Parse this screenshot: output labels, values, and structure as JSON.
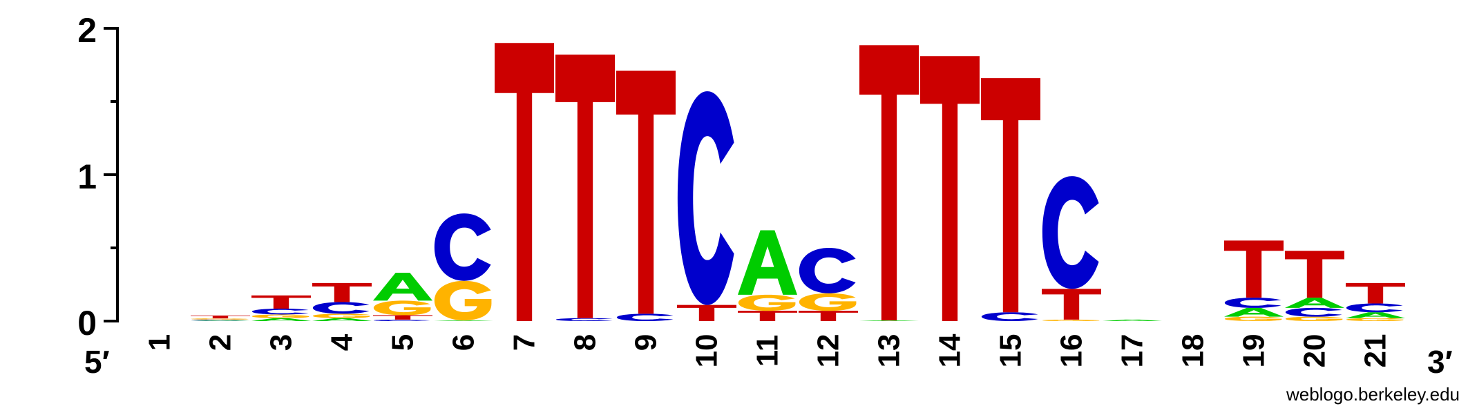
{
  "chart_data": {
    "type": "sequence-logo",
    "ylim": [
      0,
      2
    ],
    "yticks": [
      "0",
      "1",
      "2"
    ],
    "x_start_label": "5′",
    "x_end_label": "3′",
    "colors": {
      "A": "#00cc00",
      "C": "#0000cc",
      "G": "#ffb300",
      "T": "#cc0000"
    },
    "positions": [
      {
        "pos": "1",
        "stack": []
      },
      {
        "pos": "2",
        "stack": [
          [
            "A",
            0.004
          ],
          [
            "C",
            0.006
          ],
          [
            "G",
            0.008
          ],
          [
            "T",
            0.02
          ]
        ]
      },
      {
        "pos": "3",
        "stack": [
          [
            "A",
            0.02
          ],
          [
            "G",
            0.025
          ],
          [
            "C",
            0.04
          ],
          [
            "T",
            0.09
          ]
        ]
      },
      {
        "pos": "4",
        "stack": [
          [
            "A",
            0.02
          ],
          [
            "G",
            0.03
          ],
          [
            "C",
            0.08
          ],
          [
            "T",
            0.13
          ]
        ]
      },
      {
        "pos": "5",
        "stack": [
          [
            "C",
            0.01
          ],
          [
            "T",
            0.03
          ],
          [
            "G",
            0.1
          ],
          [
            "A",
            0.19
          ]
        ]
      },
      {
        "pos": "6",
        "stack": [
          [
            "A",
            0.005
          ],
          [
            "G",
            0.27
          ],
          [
            "C",
            0.46
          ]
        ]
      },
      {
        "pos": "7",
        "stack": [
          [
            "T",
            1.9
          ]
        ]
      },
      {
        "pos": "8",
        "stack": [
          [
            "C",
            0.02
          ],
          [
            "T",
            1.8
          ]
        ]
      },
      {
        "pos": "9",
        "stack": [
          [
            "C",
            0.05
          ],
          [
            "T",
            1.66
          ]
        ]
      },
      {
        "pos": "10",
        "stack": [
          [
            "T",
            0.11
          ],
          [
            "C",
            1.46
          ]
        ]
      },
      {
        "pos": "11",
        "stack": [
          [
            "T",
            0.07
          ],
          [
            "G",
            0.11
          ],
          [
            "A",
            0.44
          ]
        ]
      },
      {
        "pos": "12",
        "stack": [
          [
            "T",
            0.07
          ],
          [
            "G",
            0.12
          ],
          [
            "C",
            0.31
          ]
        ]
      },
      {
        "pos": "13",
        "stack": [
          [
            "A",
            0.005
          ],
          [
            "T",
            1.88
          ]
        ]
      },
      {
        "pos": "14",
        "stack": [
          [
            "T",
            1.81
          ]
        ]
      },
      {
        "pos": "15",
        "stack": [
          [
            "C",
            0.06
          ],
          [
            "T",
            1.6
          ]
        ]
      },
      {
        "pos": "16",
        "stack": [
          [
            "G",
            0.01
          ],
          [
            "T",
            0.21
          ],
          [
            "C",
            0.77
          ]
        ]
      },
      {
        "pos": "17",
        "stack": [
          [
            "A",
            0.01
          ]
        ]
      },
      {
        "pos": "18",
        "stack": []
      },
      {
        "pos": "19",
        "stack": [
          [
            "G",
            0.03
          ],
          [
            "A",
            0.06
          ],
          [
            "C",
            0.07
          ],
          [
            "T",
            0.39
          ]
        ]
      },
      {
        "pos": "20",
        "stack": [
          [
            "G",
            0.03
          ],
          [
            "C",
            0.06
          ],
          [
            "A",
            0.07
          ],
          [
            "T",
            0.32
          ]
        ]
      },
      {
        "pos": "21",
        "stack": [
          [
            "G",
            0.02
          ],
          [
            "A",
            0.04
          ],
          [
            "C",
            0.06
          ],
          [
            "T",
            0.14
          ]
        ]
      }
    ]
  },
  "footer": {
    "credit": "weblogo.berkeley.edu"
  }
}
